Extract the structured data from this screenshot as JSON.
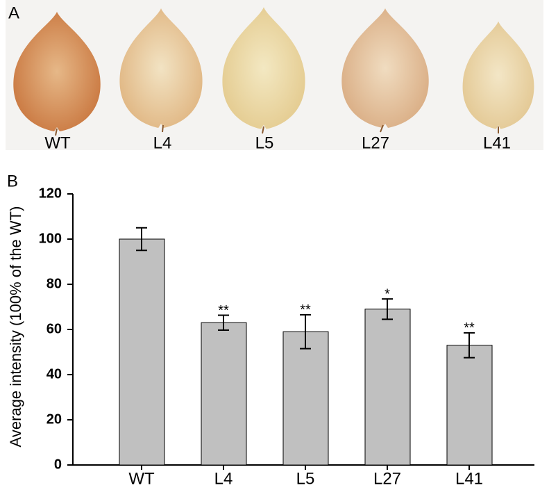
{
  "panel_a": {
    "label": "A",
    "leaves": [
      "WT",
      "L4",
      "L5",
      "L27",
      "L41"
    ]
  },
  "chart_data": {
    "type": "bar",
    "panel_label": "B",
    "y_label": "Average intensity (100% of the WT)",
    "categories": [
      "WT",
      "L4",
      "L5",
      "L27",
      "L41"
    ],
    "values": [
      100,
      63,
      59,
      69,
      53
    ],
    "errors": [
      5,
      3.3,
      7.5,
      4.5,
      5.5
    ],
    "significance": [
      null,
      "**",
      "**",
      "*",
      "**"
    ],
    "color": "#c0c0c0",
    "ylim": [
      0,
      120
    ],
    "yticks": [
      0,
      20,
      40,
      60,
      80,
      100,
      120
    ]
  }
}
